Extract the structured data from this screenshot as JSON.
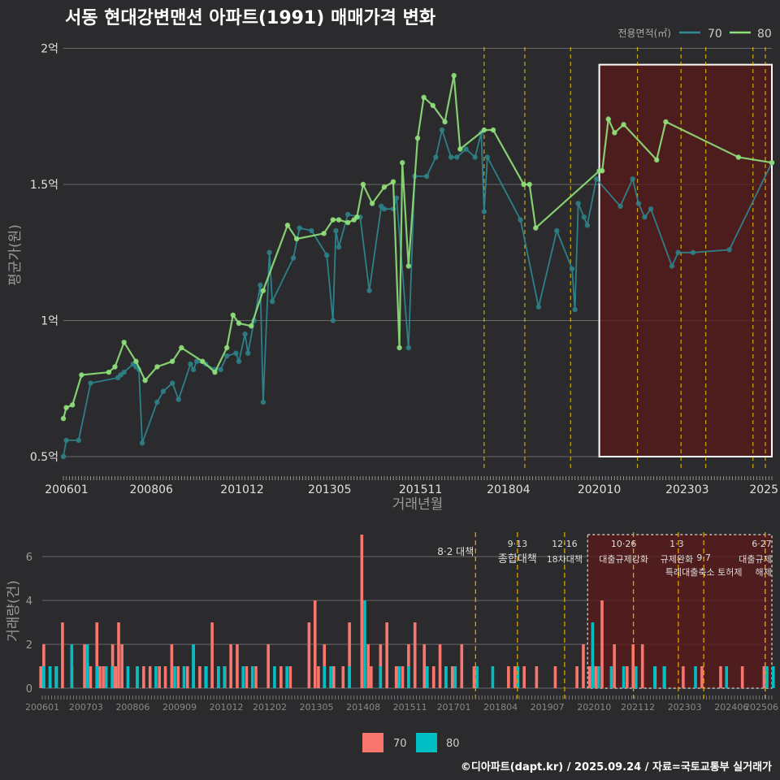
{
  "title": "서동 현대강변맨션 아파트(1991) 매매가격 변화",
  "footer": "©디아파트(dapt.kr) / 2025.09.24 / 자료=국토교통부 실거래가",
  "colors": {
    "area70_line": "#2e8a94",
    "area70_point": "#2e7f86",
    "area80": "#90e07a",
    "bar70": "#f8766d",
    "bar80": "#00bfc4",
    "policy": "#ffd400",
    "highlight_fill": "#5a1a1a",
    "bg": "#2b2b2d"
  },
  "chart_data": [
    {
      "type": "line",
      "title": "서동 현대강변맨션 아파트(1991) 매매가격 변화",
      "xlabel": "거래년월",
      "ylabel": "평균가(원)",
      "legend_title": "전용면적(㎡)",
      "legend_position": "top-right",
      "legend": [
        "70",
        "80"
      ],
      "x_tick_labels": [
        "200601",
        "200806",
        "201012",
        "201305",
        "201511",
        "201804",
        "202010",
        "202303",
        "2025"
      ],
      "x_tick_values": [
        2006.0,
        2008.42,
        2010.92,
        2013.33,
        2015.83,
        2018.25,
        2020.75,
        2023.17,
        2025.5
      ],
      "xlim": [
        2006.0,
        2025.5
      ],
      "y_tick_labels": [
        "0.5억",
        "1억",
        "1.5억",
        "2억"
      ],
      "y_tick_values": [
        0.5,
        1.0,
        1.5,
        2.0
      ],
      "ylim": [
        0.45,
        2.0
      ],
      "highlight": {
        "x_from": 2020.75,
        "x_to": 2025.5,
        "y_from": 0.5,
        "y_to": 1.94
      },
      "policy_lines": [
        2017.58,
        2018.7,
        2019.96,
        2021.8,
        2023.0,
        2023.68,
        2024.98,
        2025.32
      ],
      "series": [
        {
          "name": "70",
          "x": [
            2006.0,
            2006.08,
            2006.42,
            2006.75,
            2007.5,
            2007.58,
            2007.67,
            2007.92,
            2008.0,
            2008.08,
            2008.17,
            2008.58,
            2008.75,
            2009.0,
            2009.17,
            2009.5,
            2009.58,
            2009.67,
            2009.92,
            2010.17,
            2010.33,
            2010.5,
            2010.75,
            2010.83,
            2011.0,
            2011.08,
            2011.25,
            2011.42,
            2011.5,
            2011.67,
            2011.75,
            2012.33,
            2012.5,
            2012.83,
            2013.25,
            2013.42,
            2013.5,
            2013.58,
            2013.83,
            2014.17,
            2014.42,
            2014.75,
            2014.83,
            2015.08,
            2015.17,
            2015.5,
            2015.67,
            2016.0,
            2016.25,
            2016.42,
            2016.67,
            2016.83,
            2017.08,
            2017.33,
            2017.5,
            2017.58,
            2017.67,
            2018.58,
            2019.08,
            2019.58,
            2020.0,
            2020.08,
            2020.17,
            2020.33,
            2020.42,
            2020.67,
            2021.33,
            2021.67,
            2021.83,
            2022.0,
            2022.17,
            2022.75,
            2022.92,
            2023.33,
            2024.33,
            2025.5
          ],
          "y": [
            0.5,
            0.56,
            0.56,
            0.77,
            0.79,
            0.8,
            0.81,
            0.84,
            0.83,
            0.82,
            0.55,
            0.7,
            0.74,
            0.77,
            0.71,
            0.84,
            0.82,
            0.85,
            0.84,
            0.82,
            0.82,
            0.87,
            0.88,
            0.85,
            0.95,
            0.88,
            1.0,
            1.13,
            0.7,
            1.25,
            1.07,
            1.23,
            1.34,
            1.33,
            1.24,
            1.0,
            1.33,
            1.27,
            1.39,
            1.38,
            1.11,
            1.42,
            1.41,
            1.41,
            1.45,
            0.9,
            1.53,
            1.53,
            1.6,
            1.7,
            1.6,
            1.6,
            1.63,
            1.6,
            1.69,
            1.4,
            1.6,
            1.37,
            1.05,
            1.33,
            1.19,
            1.04,
            1.43,
            1.38,
            1.35,
            1.52,
            1.42,
            1.52,
            1.43,
            1.38,
            1.41,
            1.2,
            1.25,
            1.25,
            1.26,
            1.58
          ]
        },
        {
          "name": "80",
          "x": [
            2006.0,
            2006.08,
            2006.25,
            2006.5,
            2007.25,
            2007.42,
            2007.67,
            2008.0,
            2008.25,
            2008.58,
            2009.0,
            2009.25,
            2009.83,
            2010.17,
            2010.5,
            2010.67,
            2010.83,
            2011.17,
            2011.5,
            2012.17,
            2012.42,
            2013.17,
            2013.42,
            2013.58,
            2013.83,
            2014.0,
            2014.08,
            2014.25,
            2014.5,
            2014.83,
            2015.08,
            2015.25,
            2015.33,
            2015.5,
            2015.75,
            2015.92,
            2016.17,
            2016.5,
            2016.75,
            2016.92,
            2017.58,
            2017.83,
            2018.67,
            2018.83,
            2019.0,
            2020.75,
            2020.83,
            2021.0,
            2021.17,
            2021.42,
            2022.33,
            2022.58,
            2024.58,
            2025.5
          ],
          "y": [
            0.64,
            0.68,
            0.69,
            0.8,
            0.81,
            0.83,
            0.92,
            0.85,
            0.78,
            0.83,
            0.85,
            0.9,
            0.85,
            0.81,
            0.9,
            1.02,
            0.99,
            0.98,
            1.11,
            1.35,
            1.3,
            1.32,
            1.37,
            1.37,
            1.36,
            1.37,
            1.38,
            1.5,
            1.43,
            1.49,
            1.51,
            0.9,
            1.58,
            1.2,
            1.67,
            1.82,
            1.79,
            1.73,
            1.9,
            1.63,
            1.7,
            1.7,
            1.5,
            1.5,
            1.34,
            1.55,
            1.55,
            1.74,
            1.69,
            1.72,
            1.59,
            1.73,
            1.6,
            1.58
          ]
        }
      ]
    },
    {
      "type": "bar",
      "ylabel": "거래량(건)",
      "xlim": [
        2006.0,
        2025.5
      ],
      "ylim": [
        0,
        7
      ],
      "y_tick_labels": [
        "0",
        "2",
        "4",
        "6"
      ],
      "y_tick_values": [
        0,
        2,
        4,
        6
      ],
      "x_tick_labels": [
        "200601",
        "200703",
        "200806",
        "200909",
        "201012",
        "201202",
        "201305",
        "201408",
        "201511",
        "201701",
        "201804",
        "201907",
        "202010",
        "202112",
        "202303",
        "202406",
        "202506"
      ],
      "x_tick_values": [
        2006.0,
        2007.17,
        2008.42,
        2009.67,
        2010.92,
        2012.08,
        2013.33,
        2014.58,
        2015.83,
        2017.0,
        2018.25,
        2019.5,
        2020.75,
        2021.92,
        2023.17,
        2024.42,
        2025.42
      ],
      "legend": [
        "70",
        "80"
      ],
      "legend_position": "bottom",
      "highlight": {
        "x_from": 2020.75,
        "x_to": 2025.5
      },
      "policies": [
        {
          "date": "8·2",
          "label": "대책",
          "x": 2017.58
        },
        {
          "date": "9·13",
          "label": "종합대책",
          "x": 2018.7
        },
        {
          "date": "12·16",
          "label": "18차대책",
          "x": 2019.96
        },
        {
          "date": "10·26",
          "label": "대출규제강화",
          "x": 2021.8
        },
        {
          "date": "1·3",
          "label": "규제완화",
          "x": 2023.0
        },
        {
          "date": "9·7",
          "label": "특례대출축소 토허제",
          "x": 2023.68
        },
        {
          "date": "6·27",
          "label": "대출규제",
          "x": 2025.32
        },
        {
          "date": "",
          "label": "해제",
          "x": 2025.32
        }
      ],
      "series": [
        {
          "name": "70",
          "x": [
            2006.0,
            2006.08,
            2006.25,
            2006.42,
            2006.58,
            2006.83,
            2007.17,
            2007.33,
            2007.5,
            2007.58,
            2007.67,
            2007.92,
            2008.0,
            2008.08,
            2008.17,
            2008.58,
            2008.75,
            2008.92,
            2009.17,
            2009.33,
            2009.5,
            2009.67,
            2009.92,
            2010.08,
            2010.25,
            2010.42,
            2010.58,
            2010.75,
            2010.92,
            2011.08,
            2011.25,
            2011.5,
            2011.75,
            2012.08,
            2012.42,
            2012.67,
            2013.17,
            2013.33,
            2013.42,
            2013.58,
            2013.83,
            2014.08,
            2014.25,
            2014.58,
            2014.75,
            2014.83,
            2015.08,
            2015.25,
            2015.5,
            2015.67,
            2015.83,
            2016.0,
            2016.25,
            2016.5,
            2016.67,
            2016.83,
            2017.0,
            2017.25,
            2017.58,
            2018.5,
            2018.67,
            2018.92,
            2019.25,
            2019.75,
            2020.33,
            2020.5,
            2020.67,
            2020.83,
            2021.0,
            2021.33,
            2021.67,
            2021.83,
            2022.08,
            2022.42,
            2022.67,
            2023.17,
            2023.67,
            2024.17,
            2024.75,
            2025.33
          ],
          "y": [
            1,
            2,
            1,
            1,
            3,
            1,
            2,
            1,
            3,
            1,
            1,
            2,
            1,
            3,
            2,
            1,
            1,
            1,
            1,
            1,
            2,
            1,
            1,
            2,
            1,
            1,
            3,
            1,
            1,
            2,
            2,
            1,
            1,
            2,
            1,
            1,
            3,
            4,
            1,
            2,
            1,
            1,
            3,
            7,
            2,
            1,
            2,
            3,
            1,
            1,
            2,
            3,
            2,
            1,
            2,
            1,
            1,
            2,
            1,
            1,
            1,
            1,
            1,
            1,
            1,
            2,
            1,
            1,
            4,
            2,
            1,
            2,
            2,
            1,
            1,
            1,
            1,
            1,
            1,
            1
          ]
        },
        {
          "name": "80",
          "x": [
            2006.0,
            2006.17,
            2006.33,
            2006.75,
            2007.17,
            2007.42,
            2007.67,
            2007.83,
            2008.25,
            2008.5,
            2009.0,
            2009.5,
            2009.75,
            2010.0,
            2010.33,
            2010.67,
            2010.83,
            2011.33,
            2011.58,
            2012.17,
            2012.5,
            2013.5,
            2013.67,
            2014.17,
            2014.58,
            2015.0,
            2015.5,
            2015.75,
            2016.25,
            2016.75,
            2017.0,
            2017.58,
            2018.0,
            2018.67,
            2020.67,
            2020.83,
            2021.17,
            2021.5,
            2021.83,
            2022.33,
            2022.58,
            2023.42,
            2024.25,
            2025.33,
            2025.5
          ],
          "y": [
            1,
            1,
            1,
            2,
            2,
            1,
            1,
            1,
            1,
            1,
            1,
            1,
            1,
            2,
            1,
            1,
            1,
            1,
            1,
            1,
            1,
            1,
            1,
            1,
            4,
            1,
            1,
            1,
            1,
            1,
            1,
            1,
            1,
            1,
            3,
            1,
            1,
            1,
            1,
            1,
            1,
            1,
            1,
            1,
            1
          ]
        }
      ]
    }
  ]
}
